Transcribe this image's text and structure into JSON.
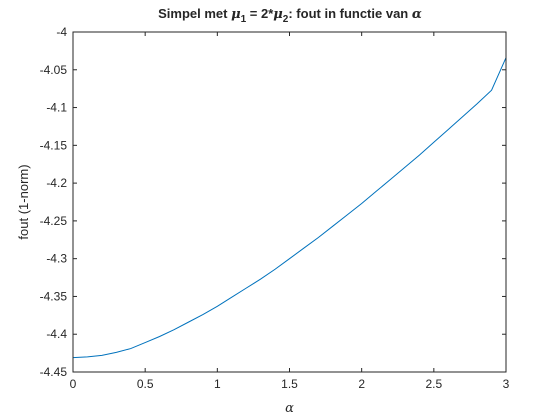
{
  "chart_data": {
    "type": "line",
    "title": {
      "prefix": "Simpel met ",
      "mu": "μ",
      "sub1": "1",
      "middle": " = 2*",
      "sub2": "2",
      "suffix": ": fout in functie van ",
      "alpha": "α"
    },
    "xlabel": "α",
    "ylabel": "fout (1-norm)",
    "xlim": [
      0,
      3
    ],
    "ylim": [
      -4.45,
      -4.0
    ],
    "xticks": [
      0,
      0.5,
      1,
      1.5,
      2,
      2.5,
      3
    ],
    "xtick_labels": [
      "0",
      "0.5",
      "1",
      "1.5",
      "2",
      "2.5",
      "3"
    ],
    "yticks": [
      -4.45,
      -4.4,
      -4.35,
      -4.3,
      -4.25,
      -4.2,
      -4.15,
      -4.1,
      -4.05,
      -4.0
    ],
    "ytick_labels": [
      "-4.45",
      "-4.4",
      "-4.35",
      "-4.3",
      "-4.25",
      "-4.2",
      "-4.15",
      "-4.1",
      "-4.05",
      "-4"
    ],
    "grid": false,
    "line_color": "#0072BD",
    "series": [
      {
        "x": [
          0,
          0.1,
          0.2,
          0.3,
          0.4,
          0.5,
          0.6,
          0.7,
          0.8,
          0.9,
          1.0,
          1.1,
          1.2,
          1.3,
          1.4,
          1.5,
          1.6,
          1.7,
          1.8,
          1.9,
          2.0,
          2.1,
          2.2,
          2.3,
          2.4,
          2.5,
          2.6,
          2.7,
          2.8,
          2.9,
          3.0
        ],
        "y": [
          -4.431,
          -4.43,
          -4.428,
          -4.424,
          -4.419,
          -4.411,
          -4.403,
          -4.394,
          -4.384,
          -4.374,
          -4.363,
          -4.351,
          -4.339,
          -4.327,
          -4.314,
          -4.3,
          -4.286,
          -4.272,
          -4.257,
          -4.242,
          -4.227,
          -4.211,
          -4.195,
          -4.179,
          -4.163,
          -4.146,
          -4.129,
          -4.112,
          -4.095,
          -4.077,
          -4.034
        ]
      }
    ]
  }
}
